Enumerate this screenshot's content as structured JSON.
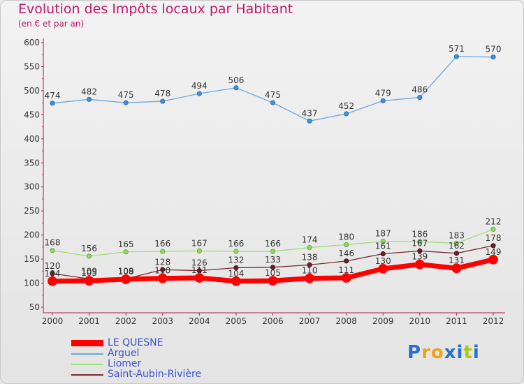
{
  "title": "Evolution des Impôts locaux par Habitant",
  "subtitle": "(en € et par an)",
  "colors": {
    "title": "#c0186a",
    "le_quesne": "#ff0000",
    "arguel": "#6fa7dd",
    "liomer": "#9fe07a",
    "saint_aubin": "#7a2a32",
    "legend_text": "#3a52c8"
  },
  "logo": {
    "letters": [
      "P",
      "r",
      "o",
      "x",
      "i",
      "t",
      "i"
    ],
    "letter_colors": [
      "#2a6fc9",
      "#f2a11a",
      "#f2a11a",
      "#2a6fc9",
      "#2a6fc9",
      "#a9c91a",
      "#2a6fc9"
    ]
  },
  "chart_data": {
    "type": "line",
    "title": "Evolution des Impôts locaux par Habitant",
    "subtitle": "(en € et par an)",
    "x": [
      2000,
      2001,
      2002,
      2003,
      2004,
      2005,
      2006,
      2007,
      2008,
      2009,
      2010,
      2011,
      2012
    ],
    "y_ticks": [
      50,
      100,
      150,
      200,
      250,
      300,
      350,
      400,
      450,
      500,
      550,
      600
    ],
    "ylim": [
      50,
      600
    ],
    "grid": false,
    "legend_position": "bottom-left",
    "series": [
      {
        "name": "LE QUESNE",
        "key": "le_quesne",
        "values": [
          104,
          105,
          108,
          110,
          111,
          104,
          105,
          110,
          111,
          130,
          139,
          131,
          149
        ]
      },
      {
        "name": "Arguel",
        "key": "arguel",
        "values": [
          474,
          482,
          475,
          478,
          494,
          506,
          475,
          437,
          452,
          479,
          486,
          571,
          570
        ]
      },
      {
        "name": "Liomer",
        "key": "liomer",
        "values": [
          168,
          156,
          165,
          166,
          167,
          166,
          166,
          174,
          180,
          187,
          186,
          183,
          212
        ]
      },
      {
        "name": "Saint-Aubin-Rivière",
        "key": "saint_aubin",
        "values": [
          120,
          109,
          109,
          128,
          126,
          132,
          133,
          138,
          146,
          161,
          167,
          162,
          178
        ]
      }
    ]
  }
}
